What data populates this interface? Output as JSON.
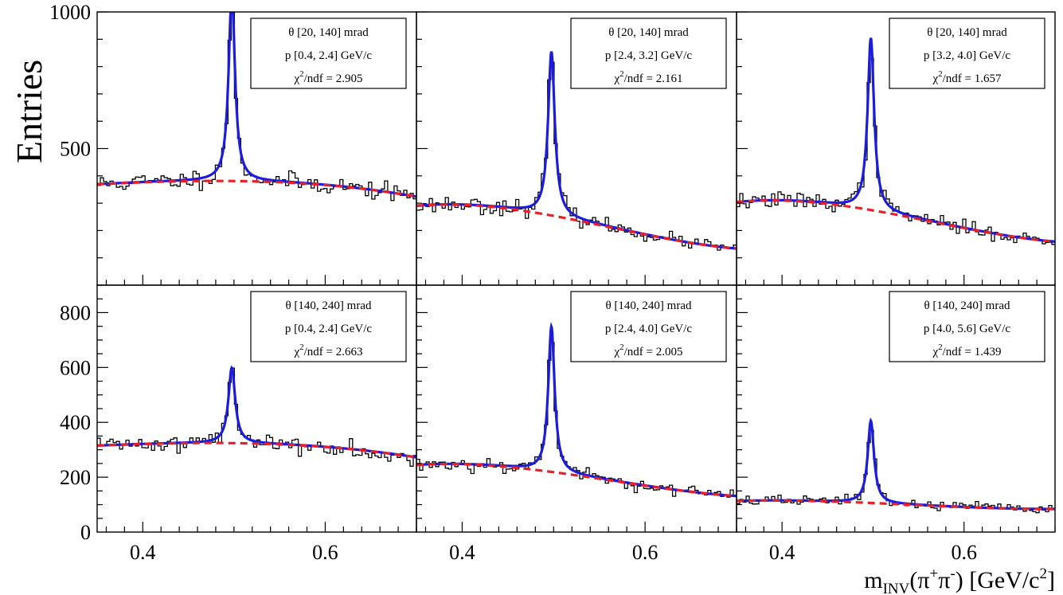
{
  "chart_data": {
    "type": "histogram-grid",
    "ylabel": "Entries",
    "xlabel": {
      "main": "m",
      "sub": "INV",
      "open": "(π",
      "sup1": "+",
      "mid": "π",
      "sup2": "-",
      "close": ") [GeV/c",
      "sup3": "2",
      "end": "]"
    },
    "xlim": [
      0.35,
      0.7
    ],
    "xticks": [
      0.4,
      0.6
    ],
    "xtick_labels": [
      "0.4",
      "0.6"
    ],
    "x_minor_step": 0.02,
    "rows": [
      {
        "ylim": [
          0,
          1000
        ],
        "yticks": [
          500,
          1000
        ],
        "ytick_labels": [
          "500",
          "1000"
        ],
        "y_minor_step": 100
      },
      {
        "ylim": [
          0,
          900
        ],
        "yticks": [
          0,
          200,
          400,
          600,
          800
        ],
        "ytick_labels": [
          "0",
          "200",
          "400",
          "600",
          "800"
        ],
        "y_minor_step": 50
      }
    ],
    "panels": [
      {
        "row": 0,
        "col": 0,
        "theta": "θ [20, 140] mrad",
        "p": "p [0.4, 2.4] GeV/c",
        "chi_prefix": "χ",
        "chi_sup": "2",
        "chi_rest": "/ndf = 2.905",
        "bg": [
          370,
          160,
          -370,
          -1400,
          0.355
        ],
        "peak": {
          "mass": 0.4976,
          "height": 690,
          "width": 0.0042
        },
        "seed": 11
      },
      {
        "row": 0,
        "col": 1,
        "theta": "θ [20, 140] mrad",
        "p": "p [2.4, 3.2] GeV/c",
        "chi_prefix": "χ",
        "chi_sup": "2",
        "chi_rest": "/ndf = 2.161",
        "bg": [
          295,
          -8.25,
          -3900,
          7300,
          0.385
        ],
        "peak": {
          "mass": 0.4976,
          "height": 600,
          "width": 0.0044
        },
        "seed": 23
      },
      {
        "row": 0,
        "col": 2,
        "theta": "θ [20, 140] mrad",
        "p": "p [3.2, 4.0] GeV/c",
        "chi_prefix": "χ",
        "chi_sup": "2",
        "chi_rest": "/ndf = 1.657",
        "bg": [
          310,
          -0.6,
          -3800,
          7200,
          0.39
        ],
        "peak": {
          "mass": 0.4976,
          "height": 630,
          "width": 0.0043
        },
        "seed": 37
      },
      {
        "row": 1,
        "col": 0,
        "theta": "θ [140, 240] mrad",
        "p": "p [0.4, 2.4] GeV/c",
        "chi_prefix": "χ",
        "chi_sup": "2",
        "chi_rest": "/ndf = 2.663",
        "bg": [
          315,
          135,
          -315,
          -1200,
          0.35
        ],
        "peak": {
          "mass": 0.4976,
          "height": 275,
          "width": 0.0045
        },
        "seed": 41
      },
      {
        "row": 1,
        "col": 1,
        "theta": "θ [140, 240] mrad",
        "p": "p [2.4, 4.0] GeV/c",
        "chi_prefix": "χ",
        "chi_sup": "2",
        "chi_rest": "/ndf = 2.005",
        "bg": [
          248,
          -5,
          -2800,
          5200,
          0.385
        ],
        "peak": {
          "mass": 0.4976,
          "height": 530,
          "width": 0.0042
        },
        "seed": 53
      },
      {
        "row": 1,
        "col": 2,
        "theta": "θ [140, 240] mrad",
        "p": "p [4.0, 5.6] GeV/c",
        "chi_prefix": "χ",
        "chi_sup": "2",
        "chi_rest": "/ndf = 1.439",
        "bg": [
          115,
          -0.8,
          -1000,
          2200,
          0.39
        ],
        "peak": {
          "mass": 0.4976,
          "height": 300,
          "width": 0.0042
        },
        "seed": 67
      }
    ],
    "colors": {
      "histogram": "#000000",
      "fit": "#1c1cdc",
      "background": "#e8202a",
      "frame": "#000000"
    }
  }
}
